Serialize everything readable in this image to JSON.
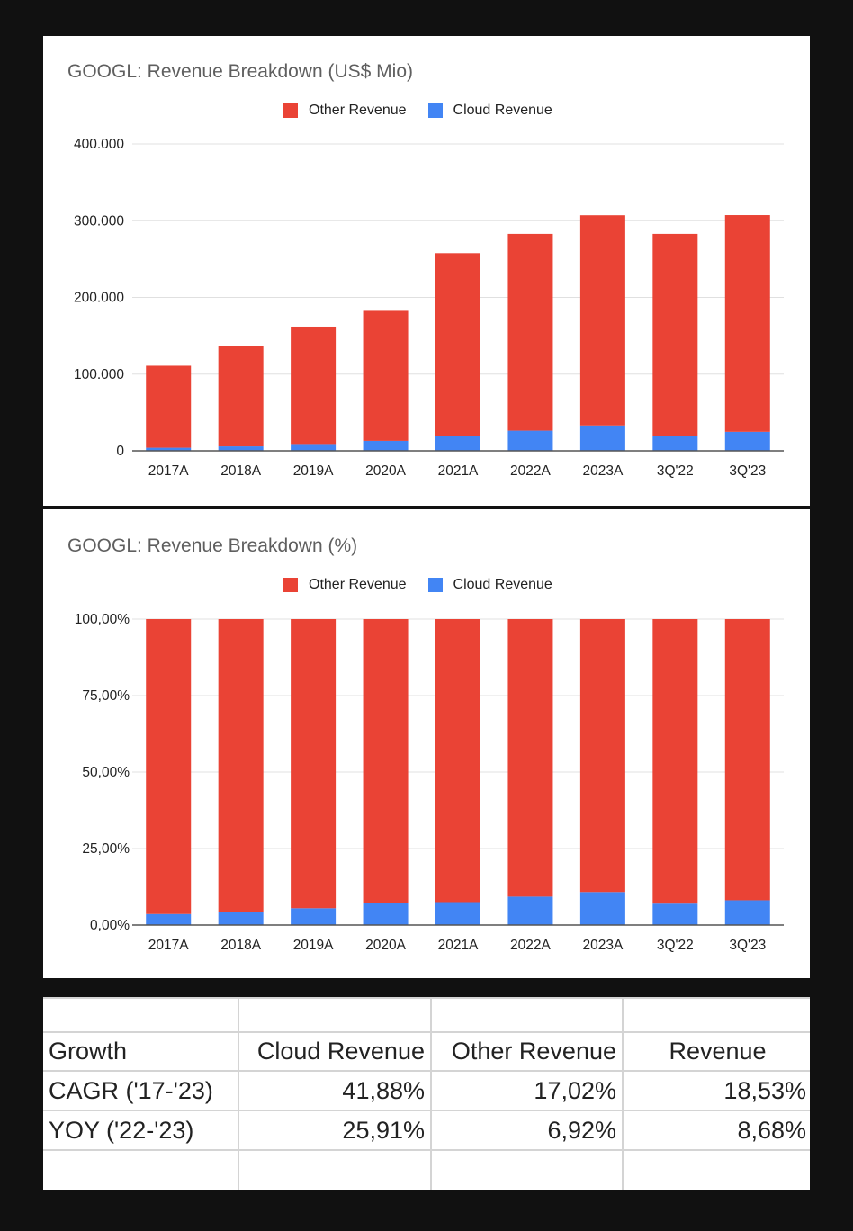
{
  "colors": {
    "other": "#ea4335",
    "cloud": "#4285f4",
    "grid": "#e0e0e0",
    "axis": "#555555"
  },
  "legend": {
    "other_label": "Other Revenue",
    "cloud_label": "Cloud Revenue"
  },
  "chart_data": [
    {
      "type": "bar",
      "stacked": true,
      "title": "GOOGL: Revenue Breakdown (US$ Mio)",
      "categories": [
        "2017A",
        "2018A",
        "2019A",
        "2020A",
        "2021A",
        "2022A",
        "2023A",
        "3Q'22",
        "3Q'23"
      ],
      "series": [
        {
          "name": "Cloud Revenue",
          "values": [
            4000,
            5800,
            8900,
            13000,
            19200,
            26300,
            33100,
            19700,
            24800
          ]
        },
        {
          "name": "Other Revenue",
          "values": [
            106900,
            131000,
            153000,
            169500,
            238500,
            256500,
            274000,
            263100,
            282500
          ]
        }
      ],
      "ylim": [
        0,
        400000
      ],
      "yticks": [
        0,
        100000,
        200000,
        300000,
        400000
      ],
      "ytick_labels": [
        "0",
        "100.000",
        "200.000",
        "300.000",
        "400.000"
      ],
      "grid": true,
      "legend_position": "top"
    },
    {
      "type": "bar",
      "stacked": true,
      "title": "GOOGL: Revenue Breakdown (%)",
      "categories": [
        "2017A",
        "2018A",
        "2019A",
        "2020A",
        "2021A",
        "2022A",
        "2023A",
        "3Q'22",
        "3Q'23"
      ],
      "series": [
        {
          "name": "Cloud Revenue",
          "values": [
            3.6,
            4.2,
            5.5,
            7.1,
            7.5,
            9.3,
            10.8,
            7.0,
            8.1
          ]
        },
        {
          "name": "Other Revenue",
          "values": [
            96.4,
            95.8,
            94.5,
            92.9,
            92.5,
            90.7,
            89.2,
            93.0,
            91.9
          ]
        }
      ],
      "ylim": [
        0,
        100
      ],
      "yticks": [
        0,
        25,
        50,
        75,
        100
      ],
      "ytick_labels": [
        "0,00%",
        "25,00%",
        "50,00%",
        "75,00%",
        "100,00%"
      ],
      "grid": true,
      "legend_position": "top"
    }
  ],
  "growth_table": {
    "headers": [
      "Growth",
      "Cloud Revenue",
      "Other Revenue",
      "Revenue"
    ],
    "rows": [
      [
        "CAGR ('17-'23)",
        "41,88%",
        "17,02%",
        "18,53%"
      ],
      [
        "YOY ('22-'23)",
        "25,91%",
        "6,92%",
        "8,68%"
      ]
    ]
  }
}
